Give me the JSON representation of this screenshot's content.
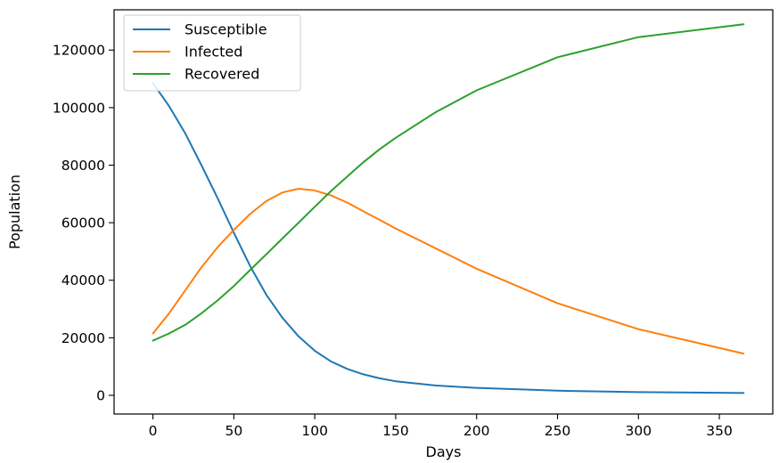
{
  "chart_data": {
    "type": "line",
    "title": "",
    "xlabel": "Days",
    "ylabel": "Population",
    "xlim": [
      -24,
      383
    ],
    "ylim": [
      -6500,
      134000
    ],
    "grid": false,
    "legend_position": "top-left",
    "x_ticks": [
      0,
      50,
      100,
      150,
      200,
      250,
      300,
      350
    ],
    "x_tick_labels": [
      "0",
      "50",
      "100",
      "150",
      "200",
      "250",
      "300",
      "350"
    ],
    "y_ticks": [
      0,
      20000,
      40000,
      60000,
      80000,
      100000,
      120000
    ],
    "y_tick_labels": [
      "0",
      "20000",
      "40000",
      "60000",
      "80000",
      "100000",
      "120000"
    ],
    "x": [
      0,
      10,
      20,
      30,
      40,
      50,
      60,
      70,
      80,
      90,
      100,
      110,
      120,
      130,
      140,
      150,
      175,
      200,
      250,
      300,
      365
    ],
    "series": [
      {
        "name": "Susceptible",
        "color": "#1f77b4",
        "values": [
          108500,
          100500,
          91000,
          80000,
          68500,
          56500,
          45000,
          35000,
          27000,
          20500,
          15500,
          11800,
          9200,
          7300,
          5900,
          4900,
          3400,
          2600,
          1600,
          1100,
          800
        ]
      },
      {
        "name": "Infected",
        "color": "#ff7f0e",
        "values": [
          21500,
          28500,
          36500,
          44500,
          51500,
          57500,
          63000,
          67500,
          70500,
          71800,
          71200,
          69500,
          67000,
          64000,
          61000,
          58000,
          51000,
          44000,
          32000,
          23000,
          14500
        ]
      },
      {
        "name": "Recovered",
        "color": "#2ca02c",
        "values": [
          19000,
          21500,
          24500,
          28500,
          33000,
          38000,
          43500,
          49000,
          54500,
          60000,
          65500,
          71000,
          76000,
          81000,
          85500,
          89500,
          98500,
          106000,
          117500,
          124500,
          129000
        ]
      }
    ]
  }
}
